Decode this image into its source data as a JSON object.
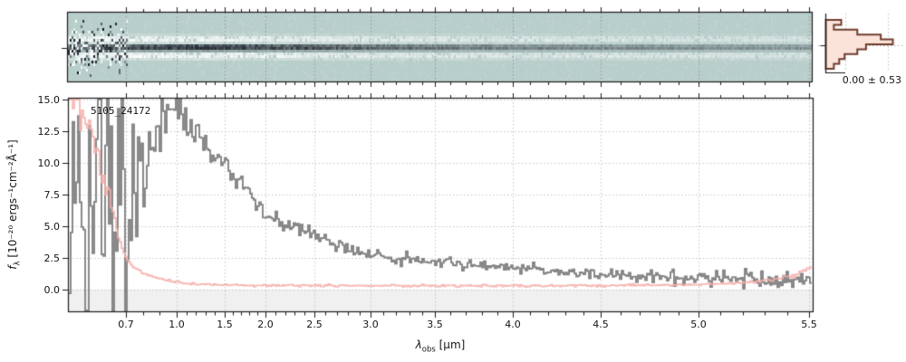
{
  "figure": {
    "annotation_id": "5105_24172",
    "histogram_stat": "0.00 ± 0.53",
    "x_axis_label": {
      "prefix": "λ",
      "sub": "obs",
      "rest": " [μm]"
    },
    "y_axis_label": {
      "prefix": "f",
      "sub": "λ",
      "rest": " [10⁻²⁰ ergs⁻¹cm⁻²Å⁻¹]"
    },
    "colors": {
      "spec2d_background": "#b8cecb",
      "spec2d_trace_dark": "#222833",
      "flux_line": "#848484",
      "error_line": "#f4afab",
      "hist_fill": "#fbe3da",
      "hist_edge": "#6f3c2d",
      "grid": "#c4c4c4",
      "spine": "#1a1a1a",
      "negative_band": "#f0f0f0"
    }
  },
  "chart_data": [
    {
      "type": "heatmap",
      "name": "2d-spectrum-cutout",
      "description": "Rectified 2D prism spectrum; dark positive trace along center row, white negative bands above and below, strong pixel noise at blue end",
      "x_range_um": [
        0.6,
        5.53
      ],
      "trace_center_frac": 0.5,
      "dark_strength_anchors": [
        [
          0.6,
          0.55
        ],
        [
          0.75,
          0.9
        ],
        [
          0.9,
          1.0
        ],
        [
          1.5,
          1.0
        ],
        [
          2.0,
          0.92
        ],
        [
          2.5,
          0.8
        ],
        [
          3.0,
          0.68
        ],
        [
          3.5,
          0.58
        ],
        [
          4.0,
          0.5
        ],
        [
          4.5,
          0.44
        ],
        [
          5.0,
          0.4
        ],
        [
          5.5,
          0.36
        ]
      ],
      "white_band_anchors": [
        [
          0.6,
          0.95
        ],
        [
          1.5,
          0.9
        ],
        [
          2.5,
          0.75
        ],
        [
          3.5,
          0.62
        ],
        [
          4.5,
          0.55
        ],
        [
          5.5,
          0.5
        ]
      ]
    },
    {
      "type": "bar",
      "name": "pixel-value-histogram",
      "orientation": "horizontal",
      "bin_fractions": [
        0.23,
        0.12,
        0.47,
        0.82,
        1.0,
        0.6,
        0.47,
        0.28,
        0.2,
        0.12
      ],
      "annotation": "0.00 ± 0.53"
    },
    {
      "type": "line",
      "name": "1d-spectrum",
      "title_annotation": "5105_24172",
      "xlabel": "λ_obs [μm]",
      "ylabel": "f_λ [10⁻²⁰ ergs⁻¹cm⁻²Å⁻¹]",
      "xlim": [
        0.6,
        5.53
      ],
      "ylim": [
        -1.8,
        15.15
      ],
      "x_tick_values": [
        0.7,
        1.0,
        1.5,
        2.0,
        2.5,
        3.0,
        3.5,
        4.0,
        4.5,
        5.0,
        5.5
      ],
      "x_tick_labels": [
        "0.7",
        "1.0",
        "1.5",
        "2.0",
        "2.5",
        "3.0",
        "3.5",
        "4.0",
        "4.5",
        "5.0",
        "5.5"
      ],
      "x_minor_step_um": 0.1,
      "x_tick_fractions": [
        [
          0.6,
          0.0
        ],
        [
          0.7,
          0.0778
        ],
        [
          1.0,
          0.1458
        ],
        [
          1.5,
          0.2102
        ],
        [
          2.0,
          0.2649
        ],
        [
          2.5,
          0.3305
        ],
        [
          3.0,
          0.4058
        ],
        [
          3.5,
          0.4921
        ],
        [
          4.0,
          0.5966
        ],
        [
          4.5,
          0.7145
        ],
        [
          5.0,
          0.8457
        ],
        [
          5.5,
          0.9939
        ],
        [
          5.53,
          1.0
        ]
      ],
      "y_tick_values": [
        15.0,
        12.5,
        10.0,
        7.5,
        5.0,
        2.5,
        0.0
      ],
      "y_tick_labels": [
        "15.0",
        "12.5",
        "10.0",
        "7.5",
        "5.0",
        "2.5",
        "0.0"
      ],
      "grid": "dotted",
      "series": [
        {
          "name": "flux",
          "style": "step",
          "anchors": [
            [
              0.6,
              7.0
            ],
            [
              0.7,
              8.0
            ],
            [
              0.8,
              10.0
            ],
            [
              0.9,
              12.8
            ],
            [
              0.97,
              14.0
            ],
            [
              1.05,
              13.8
            ],
            [
              1.15,
              12.8
            ],
            [
              1.3,
              11.3
            ],
            [
              1.5,
              9.8
            ],
            [
              1.75,
              8.0
            ],
            [
              2.0,
              6.0
            ],
            [
              2.25,
              5.0
            ],
            [
              2.5,
              4.3
            ],
            [
              2.75,
              3.4
            ],
            [
              3.0,
              2.8
            ],
            [
              3.25,
              2.45
            ],
            [
              3.5,
              2.15
            ],
            [
              3.75,
              1.95
            ],
            [
              4.0,
              1.75
            ],
            [
              4.25,
              1.5
            ],
            [
              4.5,
              1.25
            ],
            [
              4.75,
              1.05
            ],
            [
              5.0,
              0.9
            ],
            [
              5.25,
              0.8
            ],
            [
              5.5,
              0.7
            ]
          ],
          "noise_sigma_anchors": [
            [
              0.6,
              6.5
            ],
            [
              0.68,
              6.0
            ],
            [
              0.75,
              4.5
            ],
            [
              0.82,
              2.8
            ],
            [
              0.9,
              1.6
            ],
            [
              1.0,
              1.1
            ],
            [
              1.15,
              0.8
            ],
            [
              1.35,
              0.6
            ],
            [
              1.6,
              0.5
            ],
            [
              2.0,
              0.38
            ],
            [
              2.5,
              0.3
            ],
            [
              3.0,
              0.25
            ],
            [
              3.5,
              0.22
            ],
            [
              4.0,
              0.2
            ],
            [
              4.5,
              0.24
            ],
            [
              5.0,
              0.28
            ],
            [
              5.3,
              0.33
            ],
            [
              5.5,
              0.38
            ]
          ]
        },
        {
          "name": "error",
          "style": "step",
          "anchors": [
            [
              0.6,
              16.0
            ],
            [
              0.615,
              15.2
            ],
            [
              0.63,
              13.5
            ],
            [
              0.645,
              11.8
            ],
            [
              0.66,
              9.5
            ],
            [
              0.67,
              7.8
            ],
            [
              0.68,
              6.2
            ],
            [
              0.69,
              4.2
            ],
            [
              0.7,
              2.7
            ],
            [
              0.72,
              2.2
            ],
            [
              0.75,
              1.8
            ],
            [
              0.8,
              1.4
            ],
            [
              0.85,
              1.1
            ],
            [
              0.9,
              0.9
            ],
            [
              0.95,
              0.75
            ],
            [
              1.0,
              0.63
            ],
            [
              1.1,
              0.5
            ],
            [
              1.25,
              0.42
            ],
            [
              1.5,
              0.37
            ],
            [
              1.75,
              0.35
            ],
            [
              2.0,
              0.33
            ],
            [
              2.5,
              0.31
            ],
            [
              3.0,
              0.3
            ],
            [
              3.5,
              0.3
            ],
            [
              4.0,
              0.3
            ],
            [
              4.5,
              0.32
            ],
            [
              4.8,
              0.35
            ],
            [
              5.0,
              0.4
            ],
            [
              5.2,
              0.52
            ],
            [
              5.35,
              0.78
            ],
            [
              5.45,
              1.2
            ],
            [
              5.5,
              1.75
            ]
          ],
          "noise_sigma": 0.04
        }
      ]
    }
  ]
}
